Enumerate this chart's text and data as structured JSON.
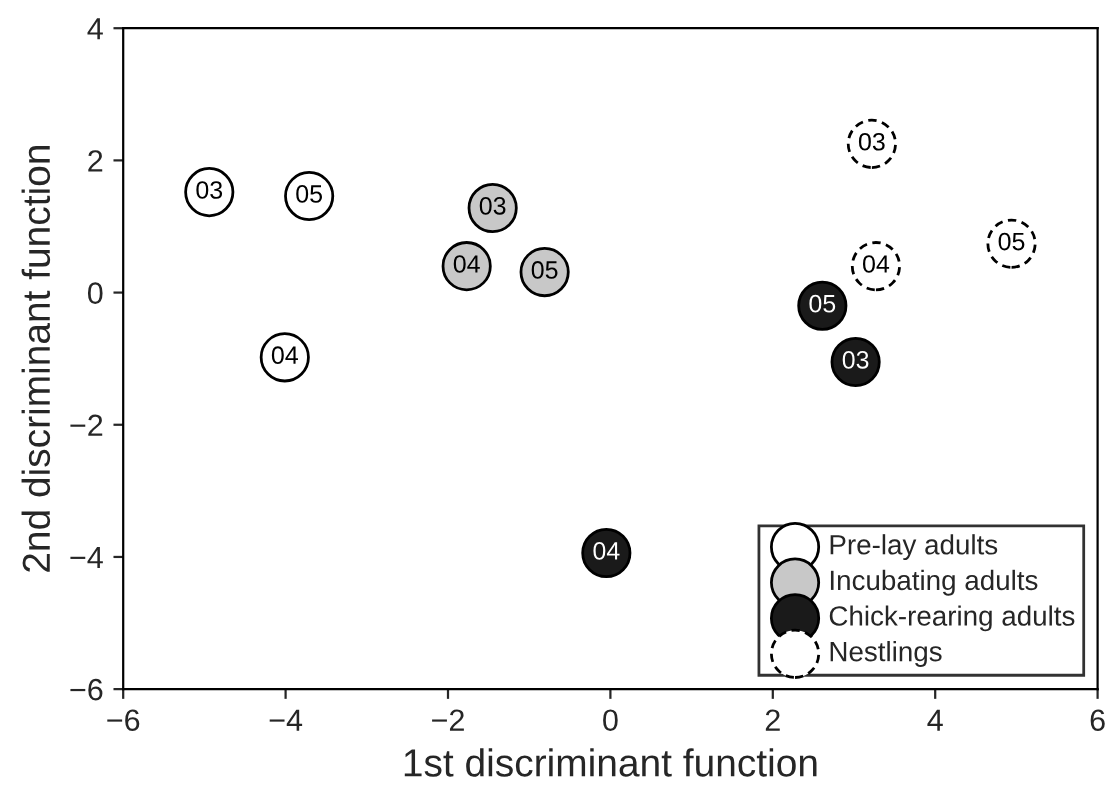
{
  "chart_data": {
    "type": "scatter",
    "xlabel": "1st discriminant function",
    "ylabel": "2nd discriminant function",
    "xlim": [
      -6,
      6
    ],
    "ylim": [
      -6,
      4
    ],
    "xticks": [
      -6,
      -4,
      -2,
      0,
      2,
      4,
      6
    ],
    "yticks": [
      -6,
      -4,
      -2,
      0,
      2,
      4
    ],
    "grid": false,
    "legend": "bottom right",
    "marker": "circle",
    "series": [
      {
        "name": "Pre-lay adults",
        "color": "#ffffff",
        "line_style": "solid",
        "x": [
          -4.94,
          -3.71,
          -4.01
        ],
        "values": [
          1.52,
          1.46,
          -0.98
        ]
      },
      {
        "name": "Incubating adults",
        "color": "#c8c8c8",
        "line_style": "solid",
        "x": [
          -1.45,
          -1.77,
          -0.81
        ],
        "values": [
          1.28,
          0.4,
          0.31
        ]
      },
      {
        "name": "Chick-rearing adults",
        "color": "#1a1a1a",
        "line_style": "solid",
        "x": [
          2.61,
          3.02,
          -0.05
        ],
        "values": [
          -0.2,
          -1.05,
          -3.94
        ]
      },
      {
        "name": "Nestlings",
        "color": "#ffffff",
        "line_style": "dashed",
        "x": [
          3.22,
          3.27,
          4.94
        ],
        "values": [
          2.25,
          0.4,
          0.74
        ]
      }
    ],
    "annotations": [
      {
        "text": "03",
        "x": -4.94,
        "y": 1.52
      },
      {
        "text": "05",
        "x": -3.71,
        "y": 1.46
      },
      {
        "text": "04",
        "x": -4.01,
        "y": -0.98
      },
      {
        "text": "03",
        "x": -1.45,
        "y": 1.28
      },
      {
        "text": "04",
        "x": -1.77,
        "y": 0.4
      },
      {
        "text": "05",
        "x": -0.81,
        "y": 0.31
      },
      {
        "text": "05",
        "x": 2.61,
        "y": -0.2
      },
      {
        "text": "03",
        "x": 3.02,
        "y": -1.05
      },
      {
        "text": "04",
        "x": -0.05,
        "y": -3.94
      },
      {
        "text": "03",
        "x": 3.22,
        "y": 2.25
      },
      {
        "text": "04",
        "x": 3.27,
        "y": 0.4
      },
      {
        "text": "05",
        "x": 4.94,
        "y": 0.74
      }
    ]
  }
}
